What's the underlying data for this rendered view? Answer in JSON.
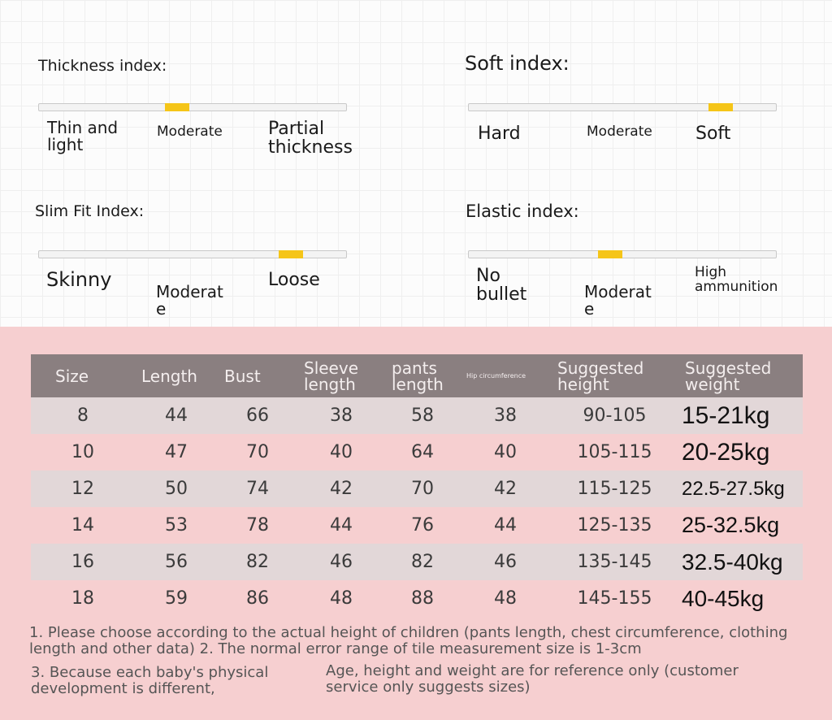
{
  "indices": {
    "thickness": {
      "title": "Thickness index:",
      "level": 0.45,
      "labels": {
        "left": "Thin and light",
        "middle": "Moderate",
        "right": "Partial thickness"
      }
    },
    "soft": {
      "title": "Soft index:",
      "level": 0.82,
      "labels": {
        "left": "Hard",
        "middle": "Moderate",
        "right": "Soft"
      }
    },
    "slim_fit": {
      "title": "Slim Fit Index:",
      "level": 0.82,
      "labels": {
        "left": "Skinny",
        "middle": "Moderate",
        "right": "Loose"
      }
    },
    "elastic": {
      "title": "Elastic index:",
      "level": 0.46,
      "labels": {
        "left": "No bullet",
        "middle": "Moderate",
        "right": "High ammunition"
      }
    },
    "marker_color": "#f5c518"
  },
  "size_table": {
    "headers": [
      "Size",
      "Length",
      "Bust",
      "Sleeve length",
      "pants length",
      "Hip circumference",
      "Suggested height",
      "Suggested weight"
    ],
    "rows": [
      [
        "8",
        "44",
        "66",
        "38",
        "58",
        "38",
        "90-105",
        "15-21kg"
      ],
      [
        "10",
        "47",
        "70",
        "40",
        "64",
        "40",
        "105-115",
        "20-25kg"
      ],
      [
        "12",
        "50",
        "74",
        "42",
        "70",
        "42",
        "115-125",
        "22.5-27.5kg"
      ],
      [
        "14",
        "53",
        "78",
        "44",
        "76",
        "44",
        "125-135",
        "25-32.5kg"
      ],
      [
        "16",
        "56",
        "82",
        "46",
        "82",
        "46",
        "135-145",
        "32.5-40kg"
      ],
      [
        "18",
        "59",
        "86",
        "48",
        "88",
        "48",
        "145-155",
        "40-45kg"
      ]
    ]
  },
  "notes": {
    "note1": "1. Please choose according to the actual height of children (pants length, chest circumference, clothing length and other data) 2. The normal error range of tile measurement size is 1-3cm",
    "note3": "3. Because each baby's physical development is different,",
    "note_age": "Age, height and weight are for reference only (customer service only suggests sizes)"
  },
  "colors": {
    "pink_background": "#f6cfd0",
    "header_background": "#8a7f80",
    "row_stripe": "#e2d7d8"
  }
}
